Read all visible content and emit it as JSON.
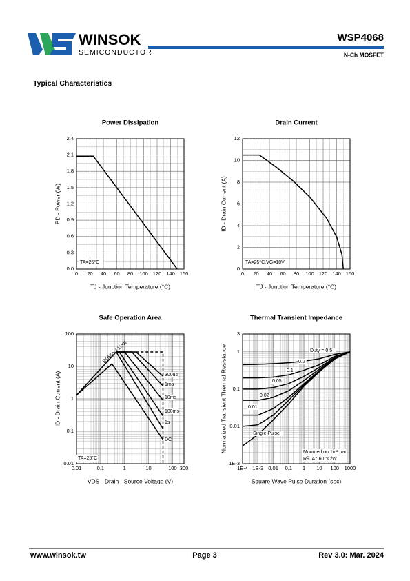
{
  "header": {
    "logo_name": "WINSOK",
    "logo_subtitle": "SEMICONDUCTOR",
    "part_number": "WSP4068",
    "part_type": "N-Ch MOSFET"
  },
  "section_title": "Typical Characteristics",
  "chart_data": [
    {
      "type": "line",
      "title": "Power Dissipation",
      "x_label": "TJ - Junction Temperature (°C)",
      "y_label": "PD - Power (W)",
      "annotations": [
        "TA=25°C"
      ],
      "x": [
        0,
        25,
        150
      ],
      "series": [
        {
          "color": "#000000",
          "values": [
            2.08,
            2.08,
            0
          ]
        }
      ],
      "xlim": [
        0,
        160
      ],
      "xticks": [
        0,
        20,
        40,
        60,
        80,
        100,
        120,
        140,
        160
      ],
      "ylim": [
        0,
        2.4
      ],
      "yticks": [
        {
          "value": 0,
          "label": "0.0"
        },
        0.3,
        0.6,
        0.9,
        1.2,
        1.5,
        1.8,
        2.1,
        2.4
      ],
      "grid": true
    },
    {
      "type": "line",
      "title": "Drain Current",
      "x_label": "TJ - Junction Temperature (°C)",
      "y_label": "ID - Drain Current (A)",
      "annotations": [
        "TA=25°C,VG=10V"
      ],
      "x": [
        0,
        25,
        50,
        75,
        100,
        125,
        140,
        148,
        150
      ],
      "series": [
        {
          "color": "#000000",
          "values": [
            10.5,
            10.5,
            9.39,
            8.13,
            6.64,
            4.69,
            2.97,
            1.33,
            0
          ]
        }
      ],
      "xlim": [
        0,
        160
      ],
      "xticks": [
        0,
        20,
        40,
        60,
        80,
        100,
        120,
        140,
        160
      ],
      "ylim": [
        0,
        12
      ],
      "yticks": [
        0,
        2,
        4,
        6,
        8,
        10,
        12
      ],
      "grid": true
    },
    {
      "type": "line",
      "title": "Safe Operation Area",
      "x_label": "VDS - Drain - Source Voltage (V)",
      "y_label": "ID - Drain Current (A)",
      "annotations": [
        "TA=25°C"
      ],
      "log_scale": [
        "x",
        "y"
      ],
      "series": [
        {
          "name": "RDS(on) Limit",
          "color": "#000000",
          "x": [
            0.01,
            0.45
          ],
          "values": [
            1.3,
            28
          ]
        },
        {
          "name": "300us",
          "color": "#000000",
          "x": [
            0.45,
            3,
            40
          ],
          "values": [
            28,
            28,
            5
          ]
        },
        {
          "name": "1ms",
          "color": "#000000",
          "x": [
            0.45,
            2,
            40
          ],
          "values": [
            28,
            28,
            2.5
          ]
        },
        {
          "name": "10ms",
          "color": "#000000",
          "x": [
            0.45,
            1,
            40
          ],
          "values": [
            28,
            28,
            0.9
          ]
        },
        {
          "name": "100ms",
          "color": "#000000",
          "x": [
            0.45,
            0.6,
            40
          ],
          "values": [
            28,
            28,
            0.3
          ]
        },
        {
          "name": "1s",
          "color": "#000000",
          "x": [
            0.45,
            40
          ],
          "values": [
            28,
            0.12
          ]
        },
        {
          "name": "DC",
          "color": "#000000",
          "x": [
            0.01,
            0.3,
            40
          ],
          "values": [
            1.3,
            12,
            0.055
          ]
        },
        {
          "color": "#000000",
          "dashed": true,
          "x": [
            3,
            40,
            40
          ],
          "values": [
            28,
            28,
            0.01
          ]
        }
      ],
      "xlim": [
        0.01,
        300
      ],
      "xticks": [
        0.01,
        0.1,
        1,
        10,
        100,
        300
      ],
      "ylim": [
        0.01,
        100
      ],
      "yticks": [
        0.01,
        0.1,
        1,
        10,
        100
      ],
      "grid": true
    },
    {
      "type": "line",
      "title": "Thermal Transient Impedance",
      "x_label": "Square Wave Pulse Duration (sec)",
      "y_label": "Normalized Transient Thermal Resistance",
      "annotations": [
        "Mounted on 1in² pad",
        "RθJA : 60 °C/W"
      ],
      "log_scale": [
        "x",
        "y"
      ],
      "x": [
        0.0001,
        0.001,
        0.01,
        0.1,
        1,
        10,
        100,
        1000
      ],
      "series": [
        {
          "name": "Duty = 0.5",
          "color": "#000000",
          "values": [
            0.45,
            0.46,
            0.48,
            0.51,
            0.56,
            0.65,
            0.85,
            1
          ]
        },
        {
          "name": "0.2",
          "color": "#000000",
          "values": [
            0.2,
            0.2,
            0.21,
            0.24,
            0.32,
            0.45,
            0.75,
            1
          ]
        },
        {
          "name": "0.1",
          "color": "#000000",
          "values": [
            0.1,
            0.1,
            0.11,
            0.14,
            0.22,
            0.38,
            0.7,
            1
          ]
        },
        {
          "name": "0.05",
          "color": "#000000",
          "values": [
            0.05,
            0.05,
            0.06,
            0.09,
            0.17,
            0.34,
            0.68,
            1
          ]
        },
        {
          "name": "0.02",
          "color": "#000000",
          "values": [
            0.02,
            0.02,
            0.03,
            0.06,
            0.14,
            0.31,
            0.66,
            1
          ]
        },
        {
          "name": "0.01",
          "color": "#000000",
          "values": [
            0.01,
            0.011,
            0.02,
            0.05,
            0.13,
            0.3,
            0.65,
            1
          ]
        },
        {
          "name": "Single Pulse",
          "color": "#000000",
          "values": [
            0.003,
            0.006,
            0.015,
            0.04,
            0.12,
            0.29,
            0.64,
            1
          ]
        }
      ],
      "xlim": [
        0.0001,
        1000
      ],
      "xticks": [
        {
          "value": 0.0001,
          "label": "1E-4"
        },
        {
          "value": 0.001,
          "label": "1E-3"
        },
        0.01,
        0.1,
        1,
        10,
        100,
        1000
      ],
      "ylim": [
        0.001,
        3
      ],
      "yticks": [
        {
          "value": 0.001,
          "label": "1E-3"
        },
        0.01,
        0.1,
        1,
        3
      ],
      "grid": true
    }
  ],
  "footer": {
    "website": "www.winsok.tw",
    "page": "Page 3",
    "revision": "Rev 3.0: Mar. 2024"
  }
}
